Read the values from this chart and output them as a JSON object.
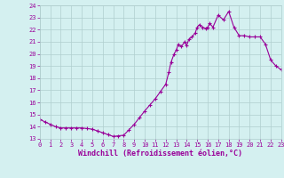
{
  "xlabel": "Windchill (Refroidissement éolien,°C)",
  "x_values": [
    0,
    0.5,
    1,
    1.5,
    2,
    2.5,
    3,
    3.5,
    4,
    4.5,
    5,
    5.5,
    6,
    6.5,
    7,
    7.5,
    8,
    8.5,
    9,
    9.5,
    10,
    10.5,
    11,
    11.5,
    12,
    12.3,
    12.5,
    12.8,
    13,
    13.2,
    13.5,
    13.8,
    14,
    14.2,
    14.5,
    14.8,
    15,
    15.2,
    15.5,
    15.8,
    16,
    16.2,
    16.5,
    17,
    17.5,
    18,
    18.5,
    19,
    19.5,
    20,
    20.5,
    21,
    21.5,
    22,
    22.5,
    23
  ],
  "y_values": [
    14.6,
    14.4,
    14.2,
    14.0,
    13.9,
    13.9,
    13.9,
    13.9,
    13.9,
    13.85,
    13.8,
    13.65,
    13.5,
    13.35,
    13.2,
    13.25,
    13.3,
    13.75,
    14.2,
    14.75,
    15.3,
    15.8,
    16.3,
    16.9,
    17.5,
    18.5,
    19.3,
    20.0,
    20.3,
    20.8,
    20.6,
    21.0,
    20.7,
    21.2,
    21.4,
    21.7,
    22.2,
    22.4,
    22.2,
    22.1,
    22.2,
    22.5,
    22.2,
    23.2,
    22.8,
    23.5,
    22.2,
    21.5,
    21.5,
    21.4,
    21.4,
    21.4,
    20.8,
    19.5,
    19.0,
    18.7
  ],
  "line_color": "#990099",
  "marker_color": "#990099",
  "bg_color": "#d4f0f0",
  "grid_color": "#b0cece",
  "ylim": [
    13,
    24
  ],
  "xlim": [
    0,
    23
  ],
  "yticks": [
    13,
    14,
    15,
    16,
    17,
    18,
    19,
    20,
    21,
    22,
    23,
    24
  ],
  "xticks": [
    0,
    1,
    2,
    3,
    4,
    5,
    6,
    7,
    8,
    9,
    10,
    11,
    12,
    13,
    14,
    15,
    16,
    17,
    18,
    19,
    20,
    21,
    22,
    23
  ],
  "tick_fontsize": 5.0,
  "label_fontsize": 6.0
}
